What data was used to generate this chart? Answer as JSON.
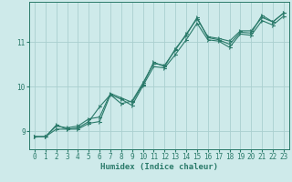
{
  "xlabel": "Humidex (Indice chaleur)",
  "bg_color": "#ceeaea",
  "grid_color": "#aacfcf",
  "line_color": "#2a7a6a",
  "xlim": [
    -0.5,
    23.5
  ],
  "ylim": [
    8.6,
    11.9
  ],
  "yticks": [
    9,
    10,
    11
  ],
  "xticks": [
    0,
    1,
    2,
    3,
    4,
    5,
    6,
    7,
    8,
    9,
    10,
    11,
    12,
    13,
    14,
    15,
    16,
    17,
    18,
    19,
    20,
    21,
    22,
    23
  ],
  "series1_x": [
    0,
    1,
    2,
    3,
    4,
    5,
    6,
    7,
    8,
    9,
    10,
    11,
    12,
    13,
    14,
    15,
    16,
    17,
    18,
    19,
    20,
    21,
    22,
    23
  ],
  "series1_y": [
    8.88,
    8.88,
    9.14,
    9.05,
    9.08,
    9.22,
    9.55,
    9.82,
    9.62,
    9.68,
    10.08,
    10.52,
    10.48,
    10.82,
    11.18,
    11.52,
    11.12,
    11.08,
    11.02,
    11.25,
    11.25,
    11.55,
    11.45,
    11.65
  ],
  "series2_x": [
    0,
    1,
    2,
    3,
    4,
    5,
    6,
    7,
    8,
    9,
    10,
    11,
    12,
    13,
    14,
    15,
    16,
    17,
    18,
    19,
    20,
    21,
    22,
    23
  ],
  "series2_y": [
    8.88,
    8.88,
    9.05,
    9.05,
    9.05,
    9.18,
    9.22,
    9.82,
    9.72,
    9.58,
    10.02,
    10.45,
    10.42,
    10.72,
    11.05,
    11.42,
    11.05,
    11.02,
    10.88,
    11.18,
    11.15,
    11.48,
    11.38,
    11.58
  ],
  "series3_x": [
    0,
    1,
    2,
    3,
    4,
    5,
    6,
    7,
    8,
    9,
    10,
    11,
    12,
    13,
    14,
    15,
    16,
    17,
    18,
    19,
    20,
    21,
    22,
    23
  ],
  "series3_y": [
    8.88,
    8.88,
    9.12,
    9.08,
    9.12,
    9.28,
    9.32,
    9.85,
    9.75,
    9.65,
    10.05,
    10.55,
    10.45,
    10.85,
    11.15,
    11.55,
    11.1,
    11.05,
    10.95,
    11.22,
    11.2,
    11.6,
    11.45,
    11.65
  ]
}
